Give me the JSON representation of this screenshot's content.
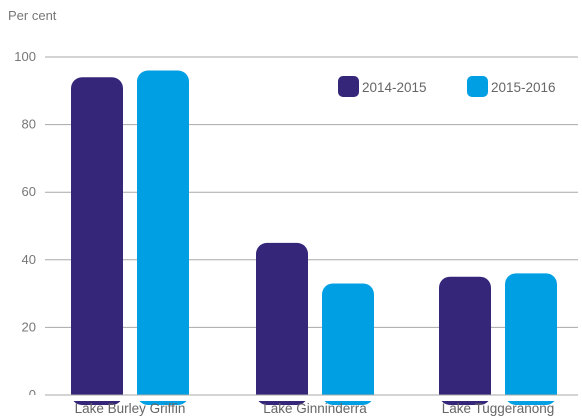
{
  "chart_data": {
    "type": "bar",
    "ylabel": "Per cent",
    "xlabel": "",
    "title": "",
    "ylim": [
      0,
      100
    ],
    "yticks": [
      0,
      20,
      40,
      60,
      80,
      100
    ],
    "categories": [
      "Lake Burley Griffin",
      "Lake Ginninderra",
      "Lake Tuggeranong"
    ],
    "series": [
      {
        "name": "2014-2015",
        "color": "#35267a",
        "values": [
          94,
          45,
          35
        ]
      },
      {
        "name": "2015-2016",
        "color": "#009fe3",
        "values": [
          96,
          33,
          36
        ]
      }
    ],
    "grid": true,
    "legend": "top-right"
  }
}
